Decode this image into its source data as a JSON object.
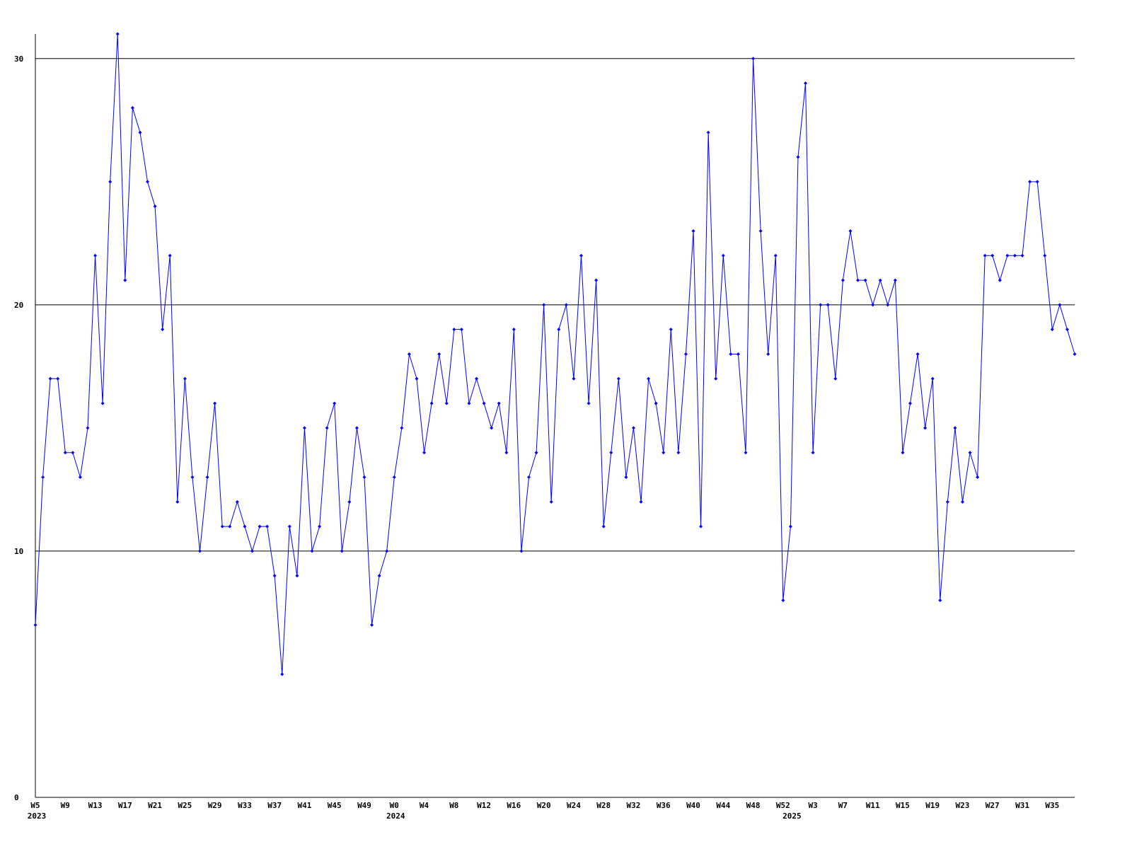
{
  "chart_data": {
    "type": "line",
    "categories": [
      "W5",
      null,
      null,
      null,
      "W9",
      null,
      null,
      null,
      "W13",
      null,
      null,
      null,
      "W17",
      null,
      null,
      null,
      "W21",
      null,
      null,
      null,
      "W25",
      null,
      null,
      null,
      "W29",
      null,
      null,
      null,
      "W33",
      null,
      null,
      null,
      "W37",
      null,
      null,
      null,
      "W41",
      null,
      null,
      null,
      "W45",
      null,
      null,
      null,
      "W49",
      null,
      null,
      null,
      "W0",
      null,
      null,
      null,
      "W4",
      null,
      null,
      null,
      "W8",
      null,
      null,
      null,
      "W12",
      null,
      null,
      null,
      "W16",
      null,
      null,
      null,
      "W20",
      null,
      null,
      null,
      "W24",
      null,
      null,
      null,
      "W28",
      null,
      null,
      null,
      "W32",
      null,
      null,
      null,
      "W36",
      null,
      null,
      null,
      "W40",
      null,
      null,
      null,
      "W44",
      null,
      null,
      null,
      "W48",
      null,
      null,
      null,
      "W52",
      null,
      null,
      null,
      "W3",
      null,
      null,
      null,
      "W7",
      null,
      null,
      null,
      "W11",
      null,
      null,
      null,
      "W15",
      null,
      null,
      null,
      "W19",
      null,
      null,
      null,
      "W23",
      null,
      null,
      null,
      "W27",
      null,
      null,
      null,
      "W31",
      null,
      null,
      null,
      "W35",
      null,
      null,
      null
    ],
    "year_labels": [
      "2023",
      null,
      null,
      null,
      null,
      null,
      null,
      null,
      null,
      null,
      null,
      null,
      null,
      null,
      null,
      null,
      null,
      null,
      null,
      null,
      null,
      null,
      null,
      null,
      null,
      null,
      null,
      null,
      null,
      null,
      null,
      null,
      null,
      null,
      null,
      null,
      null,
      null,
      null,
      null,
      null,
      null,
      null,
      null,
      null,
      null,
      null,
      null,
      "2024",
      null,
      null,
      null,
      null,
      null,
      null,
      null,
      null,
      null,
      null,
      null,
      null,
      null,
      null,
      null,
      null,
      null,
      null,
      null,
      null,
      null,
      null,
      null,
      null,
      null,
      null,
      null,
      null,
      null,
      null,
      null,
      null,
      null,
      null,
      null,
      null,
      null,
      null,
      null,
      null,
      null,
      null,
      null,
      null,
      null,
      null,
      null,
      null,
      null,
      null,
      null,
      null,
      "2025",
      null,
      null,
      null,
      null,
      null,
      null,
      null,
      null,
      null,
      null,
      null,
      null,
      null,
      null,
      null,
      null,
      null,
      null,
      null,
      null,
      null,
      null,
      null,
      null,
      null,
      null,
      null,
      null,
      null,
      null,
      null,
      null,
      null,
      null,
      null,
      null,
      null
    ],
    "values": [
      7,
      13,
      17,
      17,
      14,
      14,
      13,
      15,
      22,
      16,
      25,
      31,
      21,
      28,
      27,
      25,
      24,
      19,
      22,
      12,
      17,
      13,
      10,
      13,
      16,
      11,
      11,
      12,
      11,
      10,
      11,
      11,
      9,
      5,
      11,
      9,
      15,
      10,
      11,
      15,
      16,
      10,
      12,
      15,
      13,
      7,
      9,
      10,
      13,
      15,
      18,
      17,
      14,
      16,
      18,
      16,
      19,
      19,
      16,
      17,
      16,
      15,
      16,
      14,
      19,
      10,
      13,
      14,
      20,
      12,
      19,
      20,
      17,
      22,
      16,
      21,
      11,
      14,
      17,
      13,
      15,
      12,
      17,
      16,
      14,
      19,
      14,
      18,
      23,
      11,
      27,
      17,
      22,
      18,
      18,
      14,
      30,
      23,
      18,
      22,
      8,
      11,
      26,
      29,
      14,
      20,
      20,
      17,
      21,
      23,
      21,
      21,
      20,
      21,
      20,
      21,
      14,
      16,
      18,
      15,
      17,
      8,
      12,
      15,
      12,
      14,
      13,
      22,
      22,
      21,
      22,
      22,
      22,
      25,
      25,
      22,
      19,
      20,
      19,
      18
    ],
    "color": "#0000ff",
    "ylim": [
      0,
      31
    ],
    "yticks": [
      0,
      10,
      20,
      30
    ],
    "grid": true
  }
}
